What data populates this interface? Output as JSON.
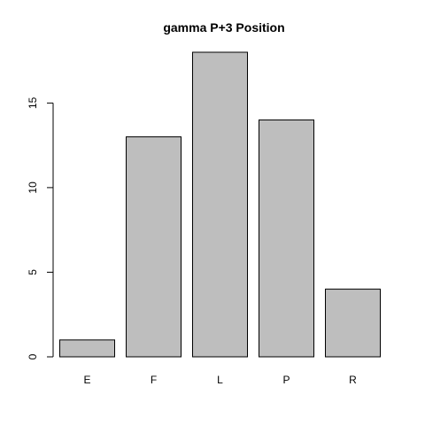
{
  "chart_data": {
    "type": "bar",
    "title": "gamma P+3 Position",
    "xlabel": "",
    "ylabel": "",
    "categories": [
      "E",
      "F",
      "L",
      "P",
      "R"
    ],
    "values": [
      1,
      13,
      18,
      14,
      4
    ],
    "ylim": [
      0,
      18
    ],
    "yticks": [
      0,
      5,
      10,
      15
    ],
    "grid": false,
    "legend": "none",
    "bar_color": "#bebebe",
    "border_color": "#000000"
  }
}
